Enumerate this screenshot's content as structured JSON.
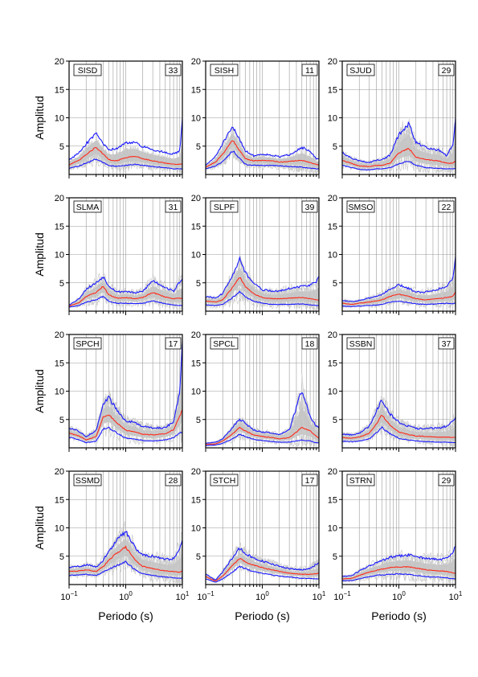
{
  "figure": {
    "y_axis_label": "Amplitud",
    "x_axis_label": "Periodo (s)"
  },
  "chart_data": {
    "type": "line",
    "layout": "grid of 4 rows x 3 columns",
    "x_scale": "log",
    "xlim": [
      0.1,
      10
    ],
    "ylim": [
      0,
      20
    ],
    "x_ticks": [
      {
        "value": 0.1,
        "base": "10",
        "exp": "−1"
      },
      {
        "value": 1,
        "base": "10",
        "exp": "0"
      },
      {
        "value": 10,
        "base": "10",
        "exp": "1"
      }
    ],
    "y_ticks": [
      "5",
      "10",
      "15",
      "20"
    ],
    "y_tick_values": [
      5,
      10,
      15,
      20
    ],
    "grid": true,
    "colors": {
      "individual": "#cccccc",
      "band": "#c4c4c4",
      "mean": "#ff2a1a",
      "bounds": "#1a1aff",
      "grid": "#9a9a9a",
      "frame": "#000000"
    },
    "series_x": [
      0.1,
      0.15,
      0.2,
      0.3,
      0.4,
      0.5,
      0.7,
      1,
      1.5,
      2,
      3,
      5,
      7,
      9,
      10
    ],
    "panels": [
      {
        "station": "SISD",
        "count": "33",
        "mean": [
          1.7,
          2.5,
          3.5,
          4.8,
          3.6,
          2.6,
          2.4,
          3.0,
          3.2,
          2.8,
          2.4,
          2.0,
          1.8,
          1.8,
          1.8
        ],
        "upper": [
          2.6,
          3.8,
          5.4,
          7.1,
          5.4,
          4.3,
          4.6,
          5.6,
          5.6,
          4.9,
          4.4,
          3.9,
          3.6,
          4.2,
          9.5
        ],
        "lower": [
          1.1,
          1.5,
          2.0,
          2.7,
          2.1,
          1.6,
          1.4,
          1.6,
          1.8,
          1.6,
          1.4,
          1.2,
          1.0,
          1.0,
          1.0
        ]
      },
      {
        "station": "SISH",
        "count": "11",
        "mean": [
          1.3,
          2.2,
          3.6,
          6.1,
          4.2,
          2.8,
          2.4,
          2.5,
          2.4,
          2.2,
          2.3,
          2.5,
          2.1,
          1.8,
          1.7
        ],
        "upper": [
          1.6,
          3.2,
          5.5,
          8.3,
          6.2,
          4.2,
          3.3,
          3.6,
          3.4,
          3.1,
          3.5,
          4.8,
          4.0,
          2.8,
          2.6
        ],
        "lower": [
          1.0,
          1.5,
          2.3,
          4.2,
          2.8,
          1.8,
          1.6,
          1.6,
          1.6,
          1.5,
          1.4,
          1.3,
          1.1,
          1.0,
          1.0
        ]
      },
      {
        "station": "SJUD",
        "count": "29",
        "mean": [
          2.5,
          1.9,
          1.5,
          1.4,
          1.6,
          1.6,
          2.0,
          3.8,
          4.6,
          3.1,
          2.6,
          2.4,
          2.0,
          2.0,
          2.4
        ],
        "upper": [
          3.8,
          2.8,
          2.4,
          2.1,
          2.5,
          2.6,
          3.4,
          7.0,
          9.0,
          5.6,
          4.8,
          4.3,
          3.3,
          5.4,
          9.6
        ],
        "lower": [
          1.6,
          1.2,
          0.9,
          0.8,
          1.0,
          1.0,
          1.2,
          1.9,
          2.4,
          1.6,
          1.2,
          1.1,
          1.0,
          1.0,
          1.1
        ]
      },
      {
        "station": "SLMA",
        "count": "31",
        "mean": [
          0.9,
          1.5,
          2.6,
          3.3,
          4.4,
          2.9,
          2.3,
          2.4,
          2.2,
          2.4,
          3.3,
          2.5,
          2.2,
          2.3,
          2.2
        ],
        "upper": [
          1.1,
          2.2,
          3.9,
          5.0,
          6.1,
          4.5,
          3.4,
          3.5,
          3.2,
          3.5,
          5.4,
          4.2,
          3.5,
          5.2,
          5.5
        ],
        "lower": [
          0.7,
          1.0,
          1.6,
          2.0,
          2.6,
          1.8,
          1.4,
          1.4,
          1.3,
          1.4,
          1.8,
          1.3,
          1.1,
          1.0,
          1.0
        ]
      },
      {
        "station": "SLPF",
        "count": "39",
        "mean": [
          1.8,
          1.6,
          2.0,
          4.2,
          6.0,
          4.4,
          3.1,
          2.4,
          2.2,
          2.2,
          2.3,
          2.4,
          2.2,
          2.0,
          2.0
        ],
        "upper": [
          2.6,
          2.3,
          3.1,
          6.5,
          9.2,
          6.8,
          4.9,
          3.8,
          3.5,
          3.6,
          4.0,
          4.4,
          4.6,
          5.2,
          6.0
        ],
        "lower": [
          1.1,
          1.0,
          1.2,
          2.4,
          3.5,
          2.5,
          1.8,
          1.4,
          1.2,
          1.2,
          1.2,
          1.3,
          1.1,
          1.0,
          1.0
        ]
      },
      {
        "station": "SMSO",
        "count": "22",
        "mean": [
          1.4,
          1.2,
          1.4,
          1.6,
          1.8,
          2.0,
          2.6,
          3.0,
          2.6,
          2.2,
          2.0,
          2.2,
          2.4,
          2.6,
          3.4
        ],
        "upper": [
          1.9,
          1.7,
          1.9,
          2.3,
          2.6,
          3.0,
          3.8,
          4.6,
          4.0,
          3.4,
          3.4,
          3.9,
          4.3,
          6.0,
          9.5
        ],
        "lower": [
          0.9,
          0.8,
          0.9,
          1.0,
          1.1,
          1.2,
          1.6,
          1.8,
          1.5,
          1.3,
          1.2,
          1.3,
          1.4,
          1.3,
          1.4
        ]
      },
      {
        "station": "SPCH",
        "count": "17",
        "mean": [
          2.6,
          2.1,
          1.4,
          2.0,
          5.4,
          5.9,
          4.4,
          3.1,
          2.8,
          2.4,
          2.3,
          2.5,
          3.2,
          5.6,
          6.8
        ],
        "upper": [
          3.5,
          2.9,
          2.0,
          3.0,
          7.8,
          8.8,
          6.6,
          4.8,
          4.4,
          3.8,
          3.5,
          3.6,
          4.6,
          10.0,
          18.5
        ],
        "lower": [
          1.9,
          1.4,
          0.9,
          1.2,
          3.3,
          3.6,
          2.6,
          1.7,
          1.5,
          1.3,
          1.2,
          1.4,
          1.8,
          2.6,
          2.8
        ]
      },
      {
        "station": "SPCL",
        "count": "18",
        "mean": [
          0.6,
          0.7,
          1.2,
          2.5,
          3.6,
          3.0,
          2.3,
          2.0,
          1.8,
          1.6,
          1.8,
          3.6,
          3.0,
          2.0,
          1.8
        ],
        "upper": [
          0.8,
          1.0,
          1.6,
          3.6,
          5.1,
          4.3,
          3.2,
          2.8,
          2.6,
          2.4,
          3.2,
          10.2,
          5.4,
          3.8,
          3.5
        ],
        "lower": [
          0.4,
          0.5,
          0.8,
          1.6,
          2.4,
          2.0,
          1.5,
          1.3,
          1.1,
          1.0,
          1.0,
          1.4,
          1.2,
          0.9,
          0.9
        ]
      },
      {
        "station": "SSBN",
        "count": "37",
        "mean": [
          1.8,
          1.7,
          1.9,
          2.6,
          4.2,
          5.8,
          4.0,
          2.8,
          2.3,
          2.1,
          2.0,
          1.9,
          1.9,
          1.8,
          1.9
        ],
        "upper": [
          2.4,
          2.3,
          2.6,
          3.8,
          6.5,
          8.6,
          6.0,
          4.5,
          3.8,
          3.4,
          3.4,
          3.5,
          3.8,
          4.8,
          5.4
        ],
        "lower": [
          1.2,
          1.1,
          1.2,
          1.6,
          2.6,
          3.6,
          2.5,
          1.7,
          1.4,
          1.2,
          1.1,
          1.0,
          1.0,
          0.9,
          0.9
        ]
      },
      {
        "station": "SSMD",
        "count": "28",
        "mean": [
          2.3,
          2.4,
          2.6,
          2.3,
          3.2,
          4.2,
          5.6,
          6.6,
          4.2,
          3.2,
          2.8,
          2.4,
          2.3,
          2.2,
          2.4
        ],
        "upper": [
          3.0,
          3.2,
          3.5,
          3.1,
          4.3,
          5.8,
          7.8,
          9.4,
          6.4,
          5.2,
          5.0,
          4.4,
          4.6,
          6.4,
          7.8
        ],
        "lower": [
          1.6,
          1.7,
          1.8,
          1.6,
          2.2,
          2.7,
          3.4,
          4.0,
          2.5,
          1.9,
          1.6,
          1.3,
          1.2,
          1.1,
          1.2
        ]
      },
      {
        "station": "STCH",
        "count": "17",
        "mean": [
          1.4,
          0.6,
          1.5,
          3.4,
          4.6,
          4.0,
          3.4,
          3.0,
          2.6,
          2.3,
          2.0,
          1.8,
          1.8,
          1.9,
          2.0
        ],
        "upper": [
          1.8,
          0.8,
          2.2,
          4.8,
          6.4,
          5.5,
          4.6,
          4.1,
          3.6,
          3.2,
          2.8,
          2.6,
          2.8,
          3.6,
          3.8
        ],
        "lower": [
          1.0,
          0.4,
          1.0,
          2.2,
          3.2,
          2.8,
          2.3,
          2.0,
          1.7,
          1.5,
          1.3,
          1.1,
          1.1,
          1.0,
          1.0
        ]
      },
      {
        "station": "STRN",
        "count": "29",
        "mean": [
          1.0,
          1.1,
          1.6,
          2.2,
          2.5,
          2.7,
          3.0,
          3.1,
          3.1,
          2.9,
          2.6,
          2.4,
          2.3,
          2.1,
          2.0
        ],
        "upper": [
          1.4,
          1.6,
          2.4,
          3.3,
          3.8,
          4.2,
          4.8,
          5.0,
          5.2,
          5.0,
          4.6,
          4.4,
          4.6,
          5.6,
          6.8
        ],
        "lower": [
          0.7,
          0.7,
          1.0,
          1.4,
          1.6,
          1.7,
          1.8,
          1.9,
          1.8,
          1.6,
          1.4,
          1.3,
          1.2,
          1.0,
          1.0
        ]
      }
    ]
  }
}
